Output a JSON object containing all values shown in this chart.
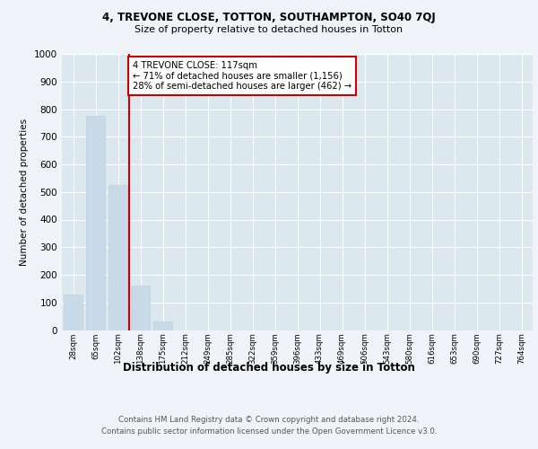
{
  "title1": "4, TREVONE CLOSE, TOTTON, SOUTHAMPTON, SO40 7QJ",
  "title2": "Size of property relative to detached houses in Totton",
  "xlabel": "Distribution of detached houses by size in Totton",
  "ylabel": "Number of detached properties",
  "bar_labels": [
    "28sqm",
    "65sqm",
    "102sqm",
    "138sqm",
    "175sqm",
    "212sqm",
    "249sqm",
    "285sqm",
    "322sqm",
    "359sqm",
    "396sqm",
    "433sqm",
    "469sqm",
    "506sqm",
    "543sqm",
    "580sqm",
    "616sqm",
    "653sqm",
    "690sqm",
    "727sqm",
    "764sqm"
  ],
  "bar_values": [
    130,
    775,
    525,
    160,
    30,
    0,
    0,
    0,
    0,
    0,
    0,
    0,
    0,
    0,
    0,
    0,
    0,
    0,
    0,
    0,
    0
  ],
  "bar_color": "#c8d9e8",
  "marker_line_color": "#cc0000",
  "annotation_text": "4 TREVONE CLOSE: 117sqm\n← 71% of detached houses are smaller (1,156)\n28% of semi-detached houses are larger (462) →",
  "annotation_box_color": "#ffffff",
  "annotation_box_edge": "#cc0000",
  "ylim": [
    0,
    1000
  ],
  "yticks": [
    0,
    100,
    200,
    300,
    400,
    500,
    600,
    700,
    800,
    900,
    1000
  ],
  "bg_color": "#dce8f0",
  "fig_color": "#f0f4f8",
  "footer1": "Contains HM Land Registry data © Crown copyright and database right 2024.",
  "footer2": "Contains public sector information licensed under the Open Government Licence v3.0."
}
